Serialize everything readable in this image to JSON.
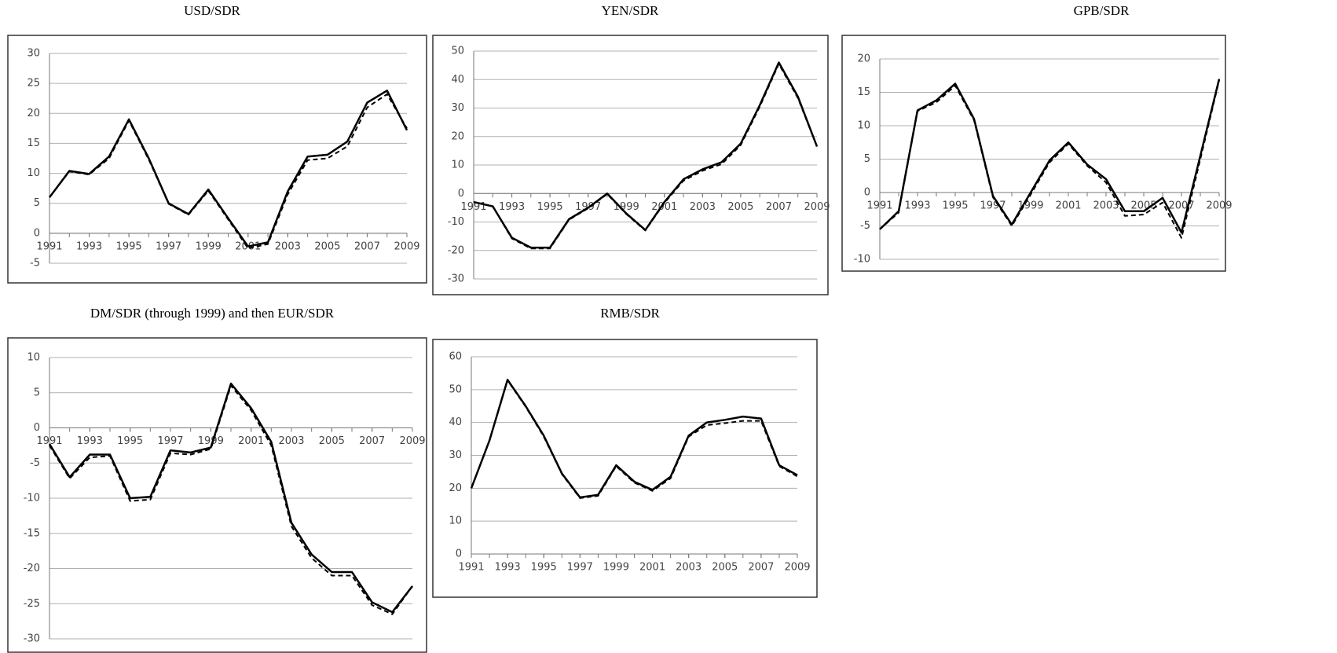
{
  "chart_data": [
    {
      "type": "line",
      "title": "USD/SDR",
      "x": [
        1991,
        1992,
        1993,
        1994,
        1995,
        1996,
        1997,
        1998,
        1999,
        2000,
        2001,
        2002,
        2003,
        2004,
        2005,
        2006,
        2007,
        2008,
        2009
      ],
      "xticks": [
        1991,
        1993,
        1995,
        1997,
        1999,
        2001,
        2003,
        2005,
        2007,
        2009
      ],
      "ylim": [
        -5,
        30
      ],
      "yticks": [
        -5,
        0,
        5,
        10,
        15,
        20,
        25,
        30
      ],
      "grid": true,
      "series": [
        {
          "color": "#000000",
          "line_style": "solid",
          "values": [
            6,
            10.4,
            9.9,
            12.8,
            19,
            12.5,
            5,
            3.2,
            7.3,
            2.5,
            -2.2,
            -1.5,
            7,
            12.8,
            13.1,
            15.3,
            21.8,
            23.8,
            17.2
          ]
        },
        {
          "color": "#000000",
          "line_style": "dashed",
          "values": [
            6,
            10.3,
            9.8,
            12.5,
            18.8,
            12.3,
            4.9,
            3.1,
            7.1,
            2.3,
            -2.5,
            -1.8,
            6.5,
            12.2,
            12.5,
            14.5,
            21,
            23.2,
            17.5
          ]
        }
      ]
    },
    {
      "type": "line",
      "title": "YEN/SDR",
      "x": [
        1991,
        1992,
        1993,
        1994,
        1995,
        1996,
        1997,
        1998,
        1999,
        2000,
        2001,
        2002,
        2003,
        2004,
        2005,
        2006,
        2007,
        2008,
        2009
      ],
      "xticks": [
        1991,
        1993,
        1995,
        1997,
        1999,
        2001,
        2003,
        2005,
        2007,
        2009
      ],
      "ylim": [
        -30,
        50
      ],
      "yticks": [
        -30,
        -20,
        -10,
        0,
        10,
        20,
        30,
        40,
        50
      ],
      "grid": true,
      "series": [
        {
          "color": "#000000",
          "line_style": "solid",
          "values": [
            -3,
            -4.5,
            -15.5,
            -19,
            -19,
            -9,
            -5,
            0,
            -7,
            -12.8,
            -3,
            5,
            8.5,
            11,
            17.5,
            31,
            46,
            34,
            16.5
          ]
        },
        {
          "color": "#000000",
          "line_style": "dashed",
          "values": [
            -3,
            -4.5,
            -15.8,
            -19.3,
            -19.3,
            -9.2,
            -5.2,
            -0.2,
            -7.2,
            -13,
            -3.3,
            4.5,
            8,
            10.3,
            17,
            30.5,
            45.5,
            33.5,
            16.5
          ]
        }
      ]
    },
    {
      "type": "line",
      "title": "GPB/SDR",
      "x": [
        1991,
        1992,
        1993,
        1994,
        1995,
        1996,
        1997,
        1998,
        1999,
        2000,
        2001,
        2002,
        2003,
        2004,
        2005,
        2006,
        2007,
        2008,
        2009
      ],
      "xticks": [
        1991,
        1993,
        1995,
        1997,
        1999,
        2001,
        2003,
        2005,
        2007,
        2009
      ],
      "ylim": [
        -10,
        20
      ],
      "yticks": [
        -10,
        -5,
        0,
        5,
        10,
        15,
        20
      ],
      "grid": true,
      "series": [
        {
          "color": "#000000",
          "line_style": "solid",
          "values": [
            -5.5,
            -2.8,
            12.3,
            13.8,
            16.3,
            11,
            -0.5,
            -4.8,
            0,
            4.8,
            7.5,
            4.2,
            2,
            -2.8,
            -2.8,
            -0.8,
            -6,
            5.5,
            17
          ]
        },
        {
          "color": "#000000",
          "line_style": "dashed",
          "values": [
            -5.5,
            -3,
            12.2,
            13.5,
            16,
            10.8,
            -0.7,
            -5,
            -0.3,
            4.5,
            7.3,
            4,
            1.5,
            -3.5,
            -3.3,
            -1.5,
            -6.8,
            5,
            16.8
          ]
        }
      ]
    },
    {
      "type": "line",
      "title": "DM/SDR (through 1999) and then EUR/SDR",
      "x": [
        1991,
        1992,
        1993,
        1994,
        1995,
        1996,
        1997,
        1998,
        1999,
        2000,
        2001,
        2002,
        2003,
        2004,
        2005,
        2006,
        2007,
        2008,
        2009
      ],
      "xticks": [
        1991,
        1993,
        1995,
        1997,
        1999,
        2001,
        2003,
        2005,
        2007,
        2009
      ],
      "ylim": [
        -30,
        10
      ],
      "yticks": [
        -30,
        -25,
        -20,
        -15,
        -10,
        -5,
        0,
        5,
        10
      ],
      "grid": true,
      "series": [
        {
          "color": "#000000",
          "line_style": "solid",
          "values": [
            -2.3,
            -7,
            -3.8,
            -3.8,
            -10,
            -9.8,
            -3.2,
            -3.5,
            -2.8,
            6.3,
            2.8,
            -2,
            -13.5,
            -18,
            -20.5,
            -20.5,
            -24.8,
            -26.2,
            -22.5
          ]
        },
        {
          "color": "#000000",
          "line_style": "dashed",
          "values": [
            -2.5,
            -7.2,
            -4.2,
            -4,
            -10.4,
            -10.2,
            -3.6,
            -3.8,
            -3,
            6,
            2.5,
            -2.5,
            -14,
            -18.5,
            -21,
            -21,
            -25.2,
            -26.5,
            -22.5
          ]
        }
      ]
    },
    {
      "type": "line",
      "title": "RMB/SDR",
      "x": [
        1991,
        1992,
        1993,
        1994,
        1995,
        1996,
        1997,
        1998,
        1999,
        2000,
        2001,
        2002,
        2003,
        2004,
        2005,
        2006,
        2007,
        2008,
        2009
      ],
      "xticks": [
        1991,
        1993,
        1995,
        1997,
        1999,
        2001,
        2003,
        2005,
        2007,
        2009
      ],
      "ylim": [
        0,
        60
      ],
      "yticks": [
        0,
        10,
        20,
        30,
        40,
        50,
        60
      ],
      "grid": true,
      "series": [
        {
          "color": "#000000",
          "line_style": "solid",
          "values": [
            20,
            34.5,
            53,
            45,
            36,
            24.5,
            17.2,
            18,
            27,
            22,
            19.5,
            23.5,
            36,
            40,
            40.8,
            41.8,
            41.2,
            27,
            24
          ]
        },
        {
          "color": "#000000",
          "line_style": "dashed",
          "values": [
            20,
            34.5,
            52.8,
            44.8,
            35.7,
            24.3,
            17,
            17.7,
            26.7,
            21.7,
            19.2,
            23,
            35.7,
            39.2,
            39.8,
            40.5,
            40.5,
            26.7,
            23.6
          ]
        }
      ]
    }
  ]
}
